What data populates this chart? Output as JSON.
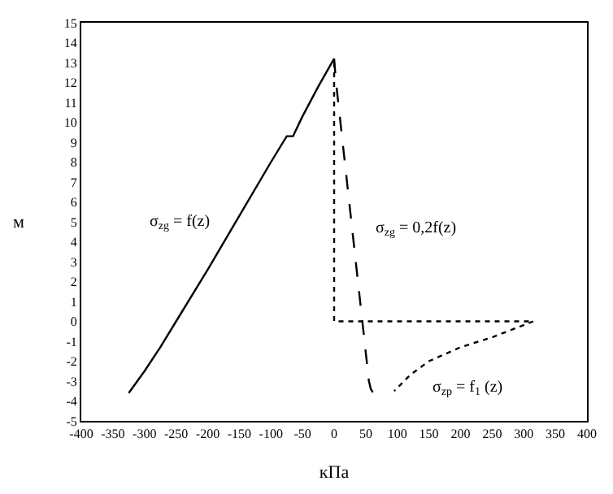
{
  "chart_data": {
    "type": "line",
    "xlabel": "кПа",
    "ylabel": "м",
    "xlim": [
      -400,
      400
    ],
    "xticks": [
      -400,
      -350,
      -300,
      -250,
      -200,
      -150,
      -100,
      -50,
      0,
      50,
      100,
      150,
      200,
      250,
      300,
      350,
      400
    ],
    "ylim": [
      -5,
      15
    ],
    "yticks": [
      -5,
      -4,
      -3,
      -2,
      -1,
      0,
      1,
      2,
      3,
      4,
      5,
      6,
      7,
      8,
      9,
      10,
      11,
      12,
      13,
      14,
      15
    ],
    "marker": "none",
    "series": [
      {
        "color": "#000000",
        "line_style": "solid",
        "x": [
          -325,
          -300,
          -275,
          -250,
          -200,
          -150,
          -100,
          -75,
          -65,
          -50,
          -25,
          0
        ],
        "values": [
          -3.6,
          -2.5,
          -1.3,
          0,
          2.6,
          5.3,
          8,
          9.3,
          9.3,
          10.3,
          11.8,
          13.2
        ]
      },
      {
        "color": "#000000",
        "line_style": "dashed",
        "x": [
          0,
          3,
          55,
          58,
          62
        ],
        "values": [
          13.2,
          12,
          -3,
          -3.4,
          -3.6
        ]
      },
      {
        "color": "#000000",
        "line_style": "dotted",
        "x": [
          0,
          0,
          315
        ],
        "values": [
          13,
          0,
          0
        ]
      },
      {
        "color": "#000000",
        "line_style": "dotted",
        "x": [
          315,
          250,
          200,
          150,
          120,
          95
        ],
        "values": [
          0,
          -0.8,
          -1.3,
          -2,
          -2.7,
          -3.5
        ]
      }
    ],
    "annotations": [
      "σ$_{zg}$ = f(z)",
      "σ$_{zg}$ = 0,2f(z)",
      "σ$_{zp}$ = f$_{1}$ (z)"
    ]
  }
}
